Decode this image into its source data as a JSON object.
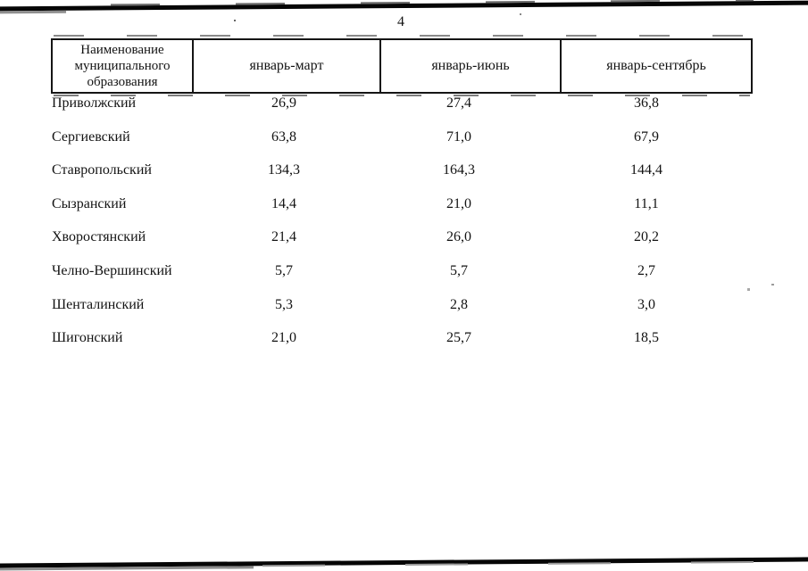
{
  "page": {
    "number": "4"
  },
  "table": {
    "columns": [
      "Наименование муниципального образования",
      "январь-март",
      "январь-июнь",
      "январь-сентябрь"
    ],
    "rows": [
      {
        "name": "Приволжский",
        "values": [
          "26,9",
          "27,4",
          "36,8"
        ]
      },
      {
        "name": "Сергиевский",
        "values": [
          "63,8",
          "71,0",
          "67,9"
        ]
      },
      {
        "name": "Ставропольский",
        "values": [
          "134,3",
          "164,3",
          "144,4"
        ]
      },
      {
        "name": "Сызранский",
        "values": [
          "14,4",
          "21,0",
          "11,1"
        ]
      },
      {
        "name": "Хворостянский",
        "values": [
          "21,4",
          "26,0",
          "20,2"
        ]
      },
      {
        "name": "Челно-Вершинский",
        "values": [
          "5,7",
          "5,7",
          "2,7"
        ]
      },
      {
        "name": "Шенталинский",
        "values": [
          "5,3",
          "2,8",
          "3,0"
        ]
      },
      {
        "name": "Шигонский",
        "values": [
          "21,0",
          "25,7",
          "18,5"
        ]
      }
    ]
  },
  "colors": {
    "ink": "#131313",
    "scan_edge": "#060606"
  }
}
